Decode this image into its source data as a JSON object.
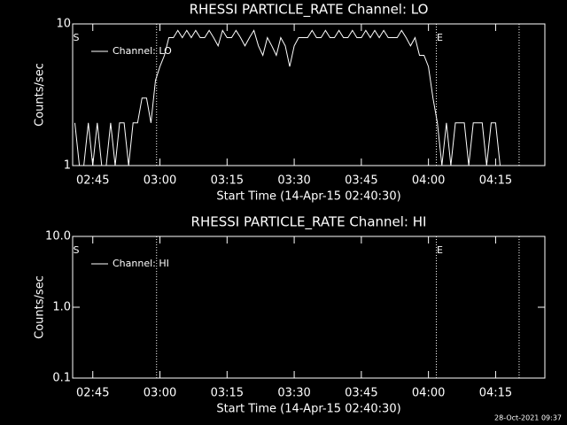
{
  "chart_data": [
    {
      "type": "line",
      "title": "RHESSI PARTICLE_RATE Channel: LO",
      "x_label": "Start Time (14-Apr-15 02:40:30)",
      "y_label": "Counts/sec",
      "log_y": true,
      "ylim": [
        1,
        10
      ],
      "yticks": [
        1,
        10
      ],
      "xlim": [
        "02:40:30",
        "04:26:00"
      ],
      "xticks": [
        "02:45",
        "03:00",
        "03:15",
        "03:30",
        "03:45",
        "04:00",
        "04:15"
      ],
      "vlines": [
        "02:59:15",
        "04:01:45",
        "04:20:15"
      ],
      "annotations": [
        {
          "text": "S",
          "x": "02:40:30"
        },
        {
          "text": "E",
          "x": "04:01:45"
        }
      ],
      "legend": "upper left",
      "series": [
        {
          "name": "Channel: LO",
          "color": "#ffffff",
          "x": [
            "02:41",
            "02:42",
            "02:43",
            "02:44",
            "02:45",
            "02:46",
            "02:47",
            "02:48",
            "02:49",
            "02:50",
            "02:51",
            "02:52",
            "02:53",
            "02:54",
            "02:55",
            "02:56",
            "02:57",
            "02:58",
            "02:59",
            "03:00",
            "03:01",
            "03:02",
            "03:03",
            "03:04",
            "03:05",
            "03:06",
            "03:07",
            "03:08",
            "03:09",
            "03:10",
            "03:11",
            "03:12",
            "03:13",
            "03:14",
            "03:15",
            "03:16",
            "03:17",
            "03:18",
            "03:19",
            "03:20",
            "03:21",
            "03:22",
            "03:23",
            "03:24",
            "03:25",
            "03:26",
            "03:27",
            "03:28",
            "03:29",
            "03:30",
            "03:31",
            "03:32",
            "03:33",
            "03:34",
            "03:35",
            "03:36",
            "03:37",
            "03:38",
            "03:39",
            "03:40",
            "03:41",
            "03:42",
            "03:43",
            "03:44",
            "03:45",
            "03:46",
            "03:47",
            "03:48",
            "03:49",
            "03:50",
            "03:51",
            "03:52",
            "03:53",
            "03:54",
            "03:55",
            "03:56",
            "03:57",
            "03:58",
            "03:59",
            "04:00",
            "04:01",
            "04:02",
            "04:03",
            "04:04",
            "04:05",
            "04:06",
            "04:07",
            "04:08",
            "04:09",
            "04:10",
            "04:11",
            "04:12",
            "04:13",
            "04:14",
            "04:15",
            "04:16"
          ],
          "values": [
            2,
            1,
            1,
            2,
            1,
            2,
            1,
            1,
            2,
            1,
            2,
            2,
            1,
            2,
            2,
            3,
            3,
            2,
            4,
            5,
            6,
            8,
            8,
            9,
            8,
            9,
            8,
            9,
            8,
            8,
            9,
            8,
            7,
            9,
            8,
            8,
            9,
            8,
            7,
            8,
            9,
            7,
            6,
            8,
            7,
            6,
            8,
            7,
            5,
            7,
            8,
            8,
            8,
            9,
            8,
            8,
            9,
            8,
            8,
            9,
            8,
            8,
            9,
            8,
            8,
            9,
            8,
            9,
            8,
            9,
            8,
            8,
            8,
            9,
            8,
            7,
            8,
            6,
            6,
            5,
            3,
            2,
            1,
            2,
            1,
            2,
            2,
            2,
            1,
            2,
            2,
            2,
            1,
            2,
            2,
            1
          ]
        }
      ]
    },
    {
      "type": "line",
      "title": "RHESSI PARTICLE_RATE Channel: HI",
      "x_label": "Start Time (14-Apr-15 02:40:30)",
      "y_label": "Counts/sec",
      "log_y": true,
      "ylim": [
        0.1,
        10
      ],
      "yticks": [
        0.1,
        {
          "value": 1,
          "label": "1.0"
        },
        {
          "value": 10,
          "label": "10.0"
        }
      ],
      "xlim": [
        "02:40:30",
        "04:26:00"
      ],
      "xticks": [
        "02:45",
        "03:00",
        "03:15",
        "03:30",
        "03:45",
        "04:00",
        "04:15"
      ],
      "vlines": [
        "02:59:15",
        "04:01:45",
        "04:20:15"
      ],
      "annotations": [
        {
          "text": "S",
          "x": "02:40:30"
        },
        {
          "text": "E",
          "x": "04:01:45"
        }
      ],
      "legend": "upper left",
      "series": [
        {
          "name": "Channel: HI",
          "color": "#ffffff",
          "x": [],
          "values": []
        }
      ]
    }
  ],
  "footer": "28-Oct-2021 09:37"
}
